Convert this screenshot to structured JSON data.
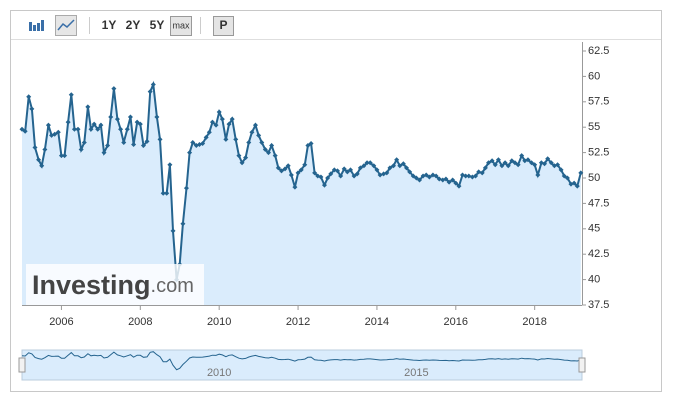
{
  "toolbar": {
    "buttons": [
      "1Y",
      "2Y",
      "5Y",
      "max",
      "P"
    ]
  },
  "watermark": {
    "brand": "Investing",
    "suffix": ".com"
  },
  "navigator": {
    "labels": [
      {
        "value": 2010,
        "label": "2010"
      },
      {
        "value": 2015,
        "label": "2015"
      }
    ]
  },
  "chart_data": {
    "type": "line",
    "area": true,
    "markers": true,
    "grid": false,
    "y_axis_side": "right",
    "color": "#25648f",
    "fill": "#daecfc",
    "xlim": [
      2005,
      2019.2
    ],
    "xticks": [
      2006,
      2008,
      2010,
      2012,
      2014,
      2016,
      2018
    ],
    "ylim": [
      37.5,
      62.5
    ],
    "yticks": [
      37.5,
      40,
      42.5,
      45,
      47.5,
      50,
      52.5,
      55,
      57.5,
      60,
      62.5
    ],
    "x": [
      2005,
      2005.08,
      2005.17,
      2005.25,
      2005.33,
      2005.42,
      2005.5,
      2005.58,
      2005.67,
      2005.75,
      2005.83,
      2005.92,
      2006,
      2006.08,
      2006.17,
      2006.25,
      2006.33,
      2006.42,
      2006.5,
      2006.58,
      2006.67,
      2006.75,
      2006.83,
      2006.92,
      2007,
      2007.08,
      2007.17,
      2007.25,
      2007.33,
      2007.42,
      2007.5,
      2007.58,
      2007.67,
      2007.75,
      2007.83,
      2007.92,
      2008,
      2008.08,
      2008.17,
      2008.25,
      2008.33,
      2008.42,
      2008.5,
      2008.58,
      2008.67,
      2008.75,
      2008.83,
      2008.92,
      2009,
      2009.08,
      2009.17,
      2009.25,
      2009.33,
      2009.42,
      2009.5,
      2009.58,
      2009.67,
      2009.75,
      2009.83,
      2009.92,
      2010,
      2010.08,
      2010.17,
      2010.25,
      2010.33,
      2010.42,
      2010.5,
      2010.58,
      2010.67,
      2010.75,
      2010.83,
      2010.92,
      2011,
      2011.08,
      2011.17,
      2011.25,
      2011.33,
      2011.42,
      2011.5,
      2011.58,
      2011.67,
      2011.75,
      2011.83,
      2011.92,
      2012,
      2012.08,
      2012.17,
      2012.25,
      2012.33,
      2012.42,
      2012.5,
      2012.58,
      2012.67,
      2012.75,
      2012.83,
      2012.92,
      2013,
      2013.08,
      2013.17,
      2013.25,
      2013.33,
      2013.42,
      2013.5,
      2013.58,
      2013.67,
      2013.75,
      2013.83,
      2013.92,
      2014,
      2014.08,
      2014.17,
      2014.25,
      2014.33,
      2014.42,
      2014.5,
      2014.58,
      2014.67,
      2014.75,
      2014.83,
      2014.92,
      2015,
      2015.08,
      2015.17,
      2015.25,
      2015.33,
      2015.42,
      2015.5,
      2015.58,
      2015.67,
      2015.75,
      2015.83,
      2015.92,
      2016,
      2016.08,
      2016.17,
      2016.25,
      2016.33,
      2016.42,
      2016.5,
      2016.58,
      2016.67,
      2016.75,
      2016.83,
      2016.92,
      2017,
      2017.08,
      2017.17,
      2017.25,
      2017.33,
      2017.42,
      2017.5,
      2017.58,
      2017.67,
      2017.75,
      2017.83,
      2017.92,
      2018,
      2018.08,
      2018.17,
      2018.25,
      2018.33,
      2018.42,
      2018.5,
      2018.58,
      2018.67,
      2018.75,
      2018.83,
      2018.92,
      2019,
      2019.08,
      2019.17
    ],
    "values": [
      54.8,
      54.6,
      58,
      56.8,
      53,
      51.8,
      51.2,
      52.8,
      55.2,
      54.2,
      54.3,
      54.5,
      52.2,
      52.2,
      55.5,
      58.2,
      54.8,
      54.8,
      52.8,
      53.5,
      57,
      54.8,
      55.3,
      54.8,
      55.2,
      52.5,
      53.2,
      56,
      58.8,
      55.8,
      54.8,
      53.5,
      54.8,
      56,
      53.3,
      55.5,
      55.3,
      53.2,
      53.6,
      58.5,
      59.2,
      56,
      53.8,
      48.5,
      48.5,
      51.3,
      44.8,
      40,
      41.5,
      45.5,
      49,
      52.5,
      53.5,
      53.2,
      53.3,
      53.4,
      54,
      54.5,
      55.5,
      55.2,
      56.5,
      55.8,
      53.8,
      55.3,
      55.8,
      53.8,
      52.2,
      51.5,
      52,
      53.5,
      54.5,
      55.2,
      54.2,
      53.5,
      52.8,
      52.5,
      53.2,
      52.2,
      51,
      50.7,
      50.9,
      51.2,
      50.3,
      49.1,
      50.5,
      50.8,
      51.3,
      53.2,
      53.4,
      50.5,
      50.2,
      50.1,
      49.3,
      50,
      50.4,
      50.8,
      50.7,
      50.2,
      50.9,
      50.6,
      50.8,
      50.2,
      50.4,
      51,
      51.2,
      51.5,
      51.5,
      51.2,
      50.8,
      50.3,
      50.4,
      50.5,
      51,
      51.2,
      51.8,
      51.2,
      51.4,
      51,
      50.6,
      50.2,
      50,
      49.8,
      50.2,
      50.3,
      50.1,
      50.3,
      50.2,
      49.9,
      49.8,
      49.9,
      49.6,
      49.8,
      49.5,
      49.2,
      50.3,
      50.2,
      50.2,
      50.1,
      50.2,
      50.6,
      50.5,
      51,
      51.5,
      51.7,
      51.3,
      51.8,
      51.2,
      51.5,
      51.2,
      51.7,
      51.5,
      51.3,
      52.2,
      51.7,
      51.8,
      51.5,
      51.3,
      50.3,
      51.5,
      51.4,
      51.9,
      51.5,
      51.2,
      51.3,
      50.8,
      50.2,
      50,
      49.4,
      49.5,
      49.2,
      50.5
    ]
  }
}
